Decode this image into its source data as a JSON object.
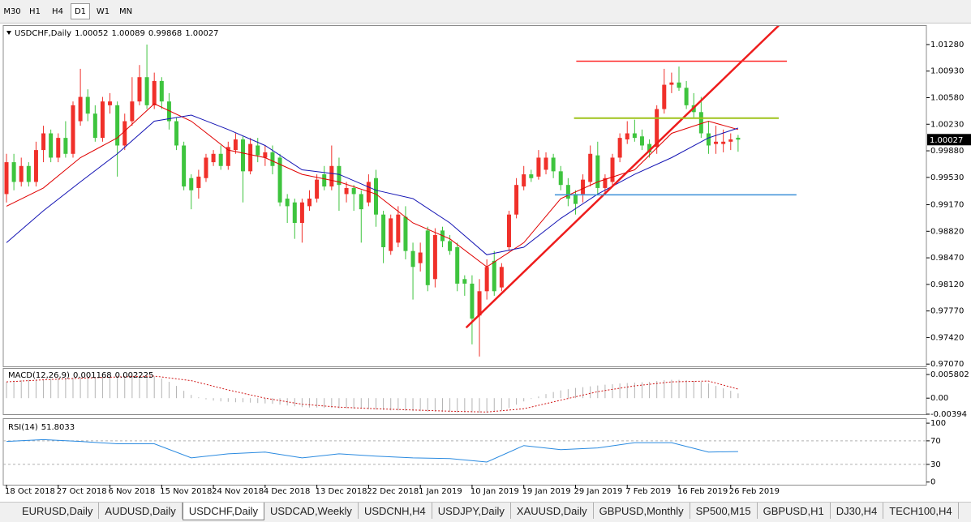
{
  "toolbar": {
    "timeframes": [
      "M30",
      "H1",
      "H4",
      "D1",
      "W1",
      "MN"
    ],
    "active": 3
  },
  "chart_data": [
    {
      "type": "candlestick",
      "title": "USDCHF,Daily",
      "categories": [
        "18 Oct 2018",
        null,
        null,
        null,
        null,
        null,
        null,
        "27 Oct 2018",
        null,
        null,
        null,
        null,
        null,
        null,
        "6 Nov 2018",
        null,
        null,
        null,
        null,
        null,
        null,
        "15 Nov 2018",
        null,
        null,
        null,
        null,
        null,
        null,
        "24 Nov 2018",
        null,
        null,
        null,
        null,
        null,
        null,
        "4 Dec 2018",
        null,
        null,
        null,
        null,
        null,
        null,
        "13 Dec 2018",
        null,
        null,
        null,
        null,
        null,
        null,
        "22 Dec 2018",
        null,
        null,
        null,
        null,
        null,
        null,
        "1 Jan 2019",
        null,
        null,
        null,
        null,
        null,
        null,
        "10 Jan 2019",
        null,
        null,
        null,
        null,
        null,
        null,
        "19 Jan 2019",
        null,
        null,
        null,
        null,
        null,
        null,
        "29 Jan 2019",
        null,
        null,
        null,
        null,
        null,
        null,
        "7 Feb 2019",
        null,
        null,
        null,
        null,
        null,
        null,
        "16 Feb 2019",
        null,
        null,
        null,
        null,
        null,
        null,
        "26 Feb 2019",
        null
      ],
      "open": [
        0.9931,
        0.9973,
        0.9947,
        0.9968,
        0.9947,
        0.9989,
        1.0011,
        0.9979,
        1.0005,
        0.9984,
        1.0027,
        1.0059,
        1.0037,
        1.0005,
        1.0048,
        1.0048,
        0.9995,
        1.0027,
        1.0053,
        1.0085,
        1.0048,
        1.008,
        1.0053,
        1.0027,
        0.9995,
        0.9952,
        0.9939,
        0.9952,
        0.9973,
        0.9984,
        0.9968,
        0.9989,
        1.0003,
        0.9961,
        0.9995,
        0.9979,
        0.9986,
        0.9979,
        0.9925,
        0.992,
        0.9893,
        0.9915,
        0.9925,
        0.9957,
        0.9941,
        0.9968,
        0.9931,
        0.9939,
        0.9931,
        0.992,
        0.9952,
        0.9904,
        0.9856,
        0.9867,
        0.9901,
        0.9856,
        0.984,
        0.9883,
        0.9819,
        0.9883,
        0.9869,
        0.9861,
        0.9819,
        0.9813,
        0.9771,
        0.9803,
        0.9843,
        0.9808,
        0.9861,
        0.9904,
        0.9941,
        0.9957,
        0.9954,
        0.9963,
        0.9979,
        0.9961,
        0.9943,
        0.9931,
        0.9931,
        0.9947,
        0.9982,
        0.9939,
        0.9947,
        0.9979,
        1.0003,
        1.0011,
        1.0007,
        0.9997,
        0.9993,
        1.0043,
        1.0075,
        1.0078,
        1.0071,
        1.0048,
        1.0039,
        1.0011,
        0.9997,
        0.9997,
        1.0,
        1.00052
      ],
      "high": [
        0.9984,
        0.9984,
        0.9979,
        0.9973,
        1.0,
        1.0021,
        1.0016,
        1.0011,
        1.0027,
        1.0053,
        1.0096,
        1.0069,
        1.0048,
        1.0059,
        1.0064,
        1.0053,
        1.0037,
        1.0085,
        1.0101,
        1.0128,
        1.0091,
        1.0085,
        1.0064,
        1.0032,
        1.0,
        0.9957,
        0.9963,
        0.9984,
        0.9989,
        0.9995,
        1.0,
        1.0011,
        1.0007,
        1.0005,
        1.0005,
        0.9995,
        0.9995,
        0.9984,
        0.9931,
        0.9925,
        0.9925,
        0.9936,
        0.9957,
        0.9968,
        0.9995,
        0.9979,
        0.9947,
        0.9943,
        0.9936,
        0.9957,
        0.9963,
        0.9909,
        0.9904,
        0.9915,
        0.9915,
        0.9867,
        0.9867,
        0.9888,
        0.9886,
        0.9888,
        0.9877,
        0.9867,
        0.9824,
        0.9824,
        0.9819,
        0.9845,
        0.9856,
        0.984,
        0.9909,
        0.9952,
        0.9968,
        0.9963,
        0.9989,
        0.9986,
        0.9984,
        0.9968,
        0.9952,
        0.9936,
        0.9957,
        0.9995,
        1.0,
        0.9957,
        0.9984,
        1.0011,
        1.0027,
        1.0029,
        1.0016,
        1.0003,
        1.0048,
        1.0096,
        1.0091,
        1.0099,
        1.008,
        1.0064,
        1.0059,
        1.0027,
        1.0021,
        1.0016,
        1.0011,
        1.00089
      ],
      "low": [
        0.992,
        0.9936,
        0.9941,
        0.9941,
        0.9941,
        0.9973,
        0.9973,
        0.9973,
        0.9979,
        0.9979,
        1.0021,
        1.0027,
        1.0,
        1.0,
        1.0037,
        0.9954,
        0.9989,
        1.0021,
        1.0048,
        1.0043,
        1.0043,
        1.0043,
        1.0016,
        0.9989,
        0.9936,
        0.9911,
        0.9925,
        0.9947,
        0.9968,
        0.9963,
        0.9963,
        0.9984,
        0.992,
        0.9957,
        0.9973,
        0.9968,
        0.9957,
        0.9915,
        0.9893,
        0.9872,
        0.9867,
        0.9909,
        0.992,
        0.9936,
        0.9936,
        0.9909,
        0.992,
        0.9909,
        0.9867,
        0.9915,
        0.9888,
        0.984,
        0.9851,
        0.9861,
        0.9845,
        0.9792,
        0.9829,
        0.9803,
        0.9808,
        0.9861,
        0.9851,
        0.9803,
        0.9797,
        0.9733,
        0.9717,
        0.9792,
        0.9797,
        0.9803,
        0.9856,
        0.9899,
        0.9936,
        0.9947,
        0.995,
        0.9957,
        0.9952,
        0.9936,
        0.9915,
        0.9904,
        0.992,
        0.9941,
        0.9931,
        0.9931,
        0.9941,
        0.9973,
        0.9997,
        1.0,
        0.9989,
        0.9979,
        0.9984,
        1.0037,
        1.0064,
        1.0067,
        1.0043,
        1.0032,
        1.0005,
        0.9984,
        0.9984,
        0.9986,
        0.9989,
        0.99868
      ],
      "close": [
        0.9973,
        0.9947,
        0.9968,
        0.9947,
        0.9989,
        1.0011,
        0.9979,
        1.0005,
        0.9984,
        1.0048,
        1.0059,
        1.0037,
        1.0005,
        1.0053,
        1.0053,
        0.9995,
        1.0027,
        1.0053,
        1.0085,
        1.0048,
        1.008,
        1.0053,
        1.0027,
        0.9995,
        0.9941,
        0.9936,
        0.9954,
        0.9979,
        0.9984,
        0.9968,
        0.9993,
        1.0003,
        0.9961,
        0.9997,
        0.9982,
        0.9986,
        0.9968,
        0.992,
        0.9915,
        0.9893,
        0.992,
        0.9925,
        0.995,
        0.9941,
        0.9968,
        0.9943,
        0.9939,
        0.9931,
        0.9911,
        0.9947,
        0.9904,
        0.9861,
        0.9899,
        0.9904,
        0.9856,
        0.9835,
        0.9854,
        0.9811,
        0.9877,
        0.9869,
        0.9856,
        0.9813,
        0.9813,
        0.9767,
        0.9803,
        0.9835,
        0.9803,
        0.9835,
        0.9904,
        0.9943,
        0.9957,
        0.9952,
        0.9979,
        0.9979,
        0.9961,
        0.9943,
        0.9925,
        0.9918,
        0.995,
        0.9984,
        0.9939,
        0.9952,
        0.9979,
        1.0005,
        1.0011,
        1.0005,
        0.9995,
        0.9986,
        1.0043,
        1.0075,
        1.0078,
        1.0071,
        1.0048,
        1.0039,
        1.0011,
        0.9995,
        1.0,
        1.0,
        1.0003,
        1.00027
      ],
      "up_color": "#f0302a",
      "down_color": "#3ec43e",
      "series": [
        {
          "type": "line",
          "color": "#e00000",
          "x": [
            0,
            5,
            10,
            15,
            20,
            25,
            30,
            35,
            40,
            45,
            50,
            55,
            60,
            65,
            70,
            75,
            80,
            85,
            90,
            95,
            99
          ],
          "values": [
            0.9915,
            0.9939,
            0.9979,
            1.0005,
            1.005,
            1.0027,
            0.9989,
            0.9979,
            0.9957,
            0.9947,
            0.9931,
            0.9893,
            0.9872,
            0.9835,
            0.9867,
            0.9925,
            0.9947,
            0.9963,
            1.0011,
            1.0027,
            1.0016
          ]
        },
        {
          "type": "line",
          "color": "#1414b4",
          "x": [
            0,
            5,
            10,
            15,
            20,
            25,
            30,
            35,
            40,
            45,
            50,
            55,
            60,
            65,
            70,
            75,
            80,
            85,
            90,
            95,
            99
          ],
          "values": [
            0.9867,
            0.9909,
            0.9947,
            0.9984,
            1.0027,
            1.0035,
            1.0016,
            0.9995,
            0.9963,
            0.9957,
            0.9936,
            0.9925,
            0.9893,
            0.9851,
            0.9861,
            0.9899,
            0.9931,
            0.9957,
            0.9979,
            1.0005,
            1.0018
          ]
        }
      ],
      "lines": [
        {
          "x": [
            62.2,
            104.5
          ],
          "y": [
            0.9755,
            1.0153
          ],
          "color": "#ee1c1c",
          "width": 2.5
        },
        {
          "x": [
            77.1,
            105.6
          ],
          "y": [
            1.0106,
            1.0106
          ],
          "color": "#ff2a2a",
          "width": 1.5
        },
        {
          "x": [
            76.8,
            104.5
          ],
          "y": [
            1.0031,
            1.0031
          ],
          "color": "#9fc31c",
          "width": 2
        },
        {
          "x": [
            74.2,
            106.9
          ],
          "y": [
            0.993,
            0.993
          ],
          "color": "#3a8fd8",
          "width": 1.5
        }
      ],
      "ylim": [
        0.9704,
        1.01525
      ],
      "yticks": [
        {
          "value": 1.0128,
          "label": "1.01280"
        },
        {
          "value": 1.0093,
          "label": "1.00930"
        },
        {
          "value": 1.0058,
          "label": "1.00580"
        },
        {
          "value": 1.0023,
          "label": "1.00230"
        },
        {
          "value": 0.9988,
          "label": "0.99880"
        },
        {
          "value": 0.9953,
          "label": "0.99530"
        },
        {
          "value": 0.9917,
          "label": "0.99170"
        },
        {
          "value": 0.9882,
          "label": "0.98820"
        },
        {
          "value": 0.9847,
          "label": "0.98470"
        },
        {
          "value": 0.9812,
          "label": "0.98120"
        },
        {
          "value": 0.9777,
          "label": "0.97770"
        },
        {
          "value": 0.9742,
          "label": "0.97420"
        },
        {
          "value": 0.9707,
          "label": "0.97070"
        }
      ]
    },
    {
      "type": "macd",
      "title": "MACD(12,26,9)",
      "series": [
        {
          "type": "bar",
          "color": "#b4b4b4",
          "values": [
            0.004,
            0.0043,
            0.0044,
            0.0045,
            0.0046,
            0.0047,
            0.0048,
            0.0049,
            0.005,
            0.005,
            0.0051,
            0.0052,
            0.0052,
            0.0053,
            0.0053,
            0.0053,
            0.0054,
            0.0054,
            0.0055,
            0.0055,
            0.0053,
            0.0048,
            0.004,
            0.003,
            0.0018,
            0.0008,
            0.0002,
            -0.0003,
            -0.0006,
            -0.0008,
            -0.0009,
            -0.001,
            -0.001,
            -0.0011,
            -0.0012,
            -0.0013,
            -0.0014,
            -0.0016,
            -0.0018,
            -0.002,
            -0.0022,
            -0.0023,
            -0.0023,
            -0.0024,
            -0.0024,
            -0.0025,
            -0.0025,
            -0.0026,
            -0.0026,
            -0.0027,
            -0.0028,
            -0.0029,
            -0.003,
            -0.003,
            -0.0031,
            -0.0032,
            -0.0032,
            -0.0033,
            -0.0033,
            -0.0034,
            -0.0034,
            -0.0035,
            -0.0035,
            -0.0035,
            -0.0036,
            -0.0036,
            -0.0034,
            -0.003,
            -0.0024,
            -0.0016,
            -0.0008,
            -0.0002,
            0.0004,
            0.001,
            0.0015,
            0.0019,
            0.0022,
            0.0025,
            0.0027,
            0.0029,
            0.0031,
            0.0033,
            0.0034,
            0.0036,
            0.0037,
            0.0038,
            0.0039,
            0.004,
            0.0042,
            0.0044,
            0.0045,
            0.0045,
            0.0044,
            0.0042,
            0.004,
            0.0036,
            0.003,
            0.0024,
            0.0018,
            0.001168
          ]
        },
        {
          "type": "line",
          "dash": true,
          "color": "#d01818",
          "x": [
            0,
            5,
            10,
            15,
            20,
            25,
            30,
            35,
            40,
            45,
            50,
            55,
            60,
            65,
            70,
            75,
            80,
            85,
            90,
            95,
            99
          ],
          "values": [
            0.004,
            0.0045,
            0.0049,
            0.0052,
            0.0054,
            0.0043,
            0.002,
            0.0,
            -0.0015,
            -0.0022,
            -0.0026,
            -0.0029,
            -0.0032,
            -0.0034,
            -0.0026,
            -0.0005,
            0.0016,
            0.003,
            0.004,
            0.0042,
            0.002225
          ]
        }
      ],
      "ylim": [
        -0.00394,
        0.0072
      ],
      "yticks": [
        0.005802,
        {
          "value": 0,
          "label": "0.00"
        },
        -0.00394
      ]
    },
    {
      "type": "line",
      "title": "RSI(14)",
      "series": [
        {
          "type": "line",
          "color": "#2a8ae0",
          "x": [
            0,
            5,
            10,
            15,
            20,
            25,
            30,
            35,
            40,
            45,
            50,
            55,
            60,
            65,
            70,
            75,
            80,
            85,
            90,
            95,
            99
          ],
          "values": [
            69,
            72,
            69,
            65,
            65,
            41,
            48,
            51,
            41,
            48,
            44,
            41,
            40,
            34,
            62,
            55,
            58,
            67,
            67,
            51,
            51.8033
          ]
        }
      ],
      "levels": [
        70,
        30
      ],
      "ylim": [
        -4.5,
        107
      ],
      "yticks": [
        100,
        70,
        30,
        0
      ]
    }
  ],
  "tabs": {
    "items": [
      "EURUSD,Daily",
      "AUDUSD,Daily",
      "USDCHF,Daily",
      "USDCAD,Weekly",
      "USDCNH,H4",
      "USDJPY,Daily",
      "XAUUSD,Daily",
      "GBPUSD,Monthly",
      "SP500,M15",
      "GBPUSD,H1",
      "DJ30,H4",
      "TECH100,H4"
    ],
    "active": 2
  }
}
